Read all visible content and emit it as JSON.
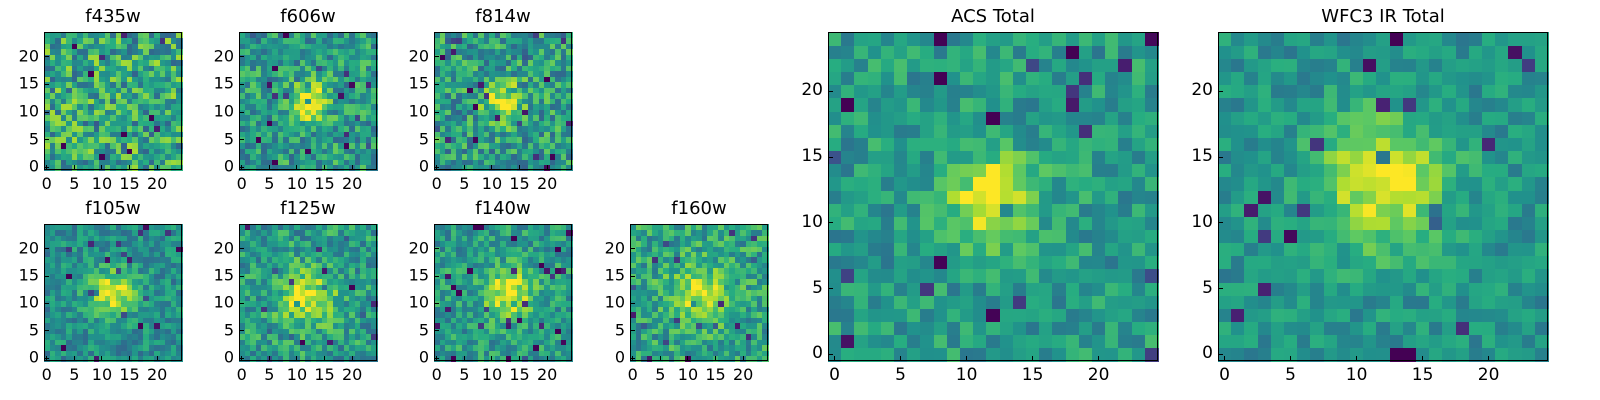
{
  "colormap": "viridis",
  "colors": {
    "low": "#440154",
    "mid": "#21918c",
    "high": "#fde725",
    "axes": "#000000",
    "background": "#ffffff"
  },
  "chart_data": [
    {
      "type": "heatmap",
      "title": "f435w",
      "grid": [
        25,
        25
      ],
      "xlim": [
        0,
        24
      ],
      "ylim": [
        0,
        24
      ],
      "xticks": [
        0,
        5,
        10,
        15,
        20
      ],
      "yticks": [
        0,
        5,
        10,
        15,
        20
      ],
      "peak": [
        null,
        null
      ],
      "peak_strength": 0.0,
      "peak_radius": 3,
      "noise": 0.28,
      "base": 0.6,
      "seed": 11
    },
    {
      "type": "heatmap",
      "title": "f606w",
      "grid": [
        25,
        25
      ],
      "xlim": [
        0,
        24
      ],
      "ylim": [
        0,
        24
      ],
      "xticks": [
        0,
        5,
        10,
        15,
        20
      ],
      "yticks": [
        0,
        5,
        10,
        15,
        20
      ],
      "peak": [
        12,
        12
      ],
      "peak_strength": 0.45,
      "peak_radius": 2.5,
      "noise": 0.22,
      "base": 0.55,
      "seed": 23
    },
    {
      "type": "heatmap",
      "title": "f814w",
      "grid": [
        25,
        25
      ],
      "xlim": [
        0,
        24
      ],
      "ylim": [
        0,
        24
      ],
      "xticks": [
        0,
        5,
        10,
        15,
        20
      ],
      "yticks": [
        0,
        5,
        10,
        15,
        20
      ],
      "peak": [
        12,
        12
      ],
      "peak_strength": 0.4,
      "peak_radius": 2.5,
      "noise": 0.24,
      "base": 0.55,
      "seed": 37
    },
    {
      "type": "heatmap",
      "title": "f105w",
      "grid": [
        25,
        25
      ],
      "xlim": [
        0,
        24
      ],
      "ylim": [
        0,
        24
      ],
      "xticks": [
        0,
        5,
        10,
        15,
        20
      ],
      "yticks": [
        0,
        5,
        10,
        15,
        20
      ],
      "peak": [
        12,
        12
      ],
      "peak_strength": 0.45,
      "peak_radius": 3,
      "noise": 0.16,
      "base": 0.5,
      "seed": 41
    },
    {
      "type": "heatmap",
      "title": "f125w",
      "grid": [
        25,
        25
      ],
      "xlim": [
        0,
        24
      ],
      "ylim": [
        0,
        24
      ],
      "xticks": [
        0,
        5,
        10,
        15,
        20
      ],
      "yticks": [
        0,
        5,
        10,
        15,
        20
      ],
      "peak": [
        12,
        11
      ],
      "peak_strength": 0.4,
      "peak_radius": 3.5,
      "noise": 0.2,
      "base": 0.55,
      "seed": 53
    },
    {
      "type": "heatmap",
      "title": "f140w",
      "grid": [
        25,
        25
      ],
      "xlim": [
        0,
        24
      ],
      "ylim": [
        0,
        24
      ],
      "xticks": [
        0,
        5,
        10,
        15,
        20
      ],
      "yticks": [
        0,
        5,
        10,
        15,
        20
      ],
      "peak": [
        13,
        12
      ],
      "peak_strength": 0.45,
      "peak_radius": 3,
      "noise": 0.18,
      "base": 0.55,
      "seed": 67
    },
    {
      "type": "heatmap",
      "title": "f160w",
      "grid": [
        25,
        25
      ],
      "xlim": [
        0,
        24
      ],
      "ylim": [
        0,
        24
      ],
      "xticks": [
        0,
        5,
        10,
        15,
        20
      ],
      "yticks": [
        0,
        5,
        10,
        15,
        20
      ],
      "peak": [
        12,
        12
      ],
      "peak_strength": 0.35,
      "peak_radius": 3.5,
      "noise": 0.2,
      "base": 0.58,
      "seed": 79
    },
    {
      "type": "heatmap",
      "title": "ACS Total",
      "grid": [
        25,
        25
      ],
      "xlim": [
        0,
        24
      ],
      "ylim": [
        0,
        24
      ],
      "xticks": [
        0,
        5,
        10,
        15,
        20
      ],
      "yticks": [
        0,
        5,
        10,
        15,
        20
      ],
      "peak": [
        12,
        12
      ],
      "peak_strength": 0.5,
      "peak_radius": 2.2,
      "noise": 0.16,
      "base": 0.55,
      "seed": 89
    },
    {
      "type": "heatmap",
      "title": "WFC3 IR Total",
      "grid": [
        25,
        25
      ],
      "xlim": [
        0,
        24
      ],
      "ylim": [
        0,
        24
      ],
      "xticks": [
        0,
        5,
        10,
        15,
        20
      ],
      "yticks": [
        0,
        5,
        10,
        15,
        20
      ],
      "peak": [
        12,
        13
      ],
      "peak_strength": 0.45,
      "peak_radius": 3.5,
      "noise": 0.13,
      "base": 0.52,
      "seed": 97
    }
  ]
}
